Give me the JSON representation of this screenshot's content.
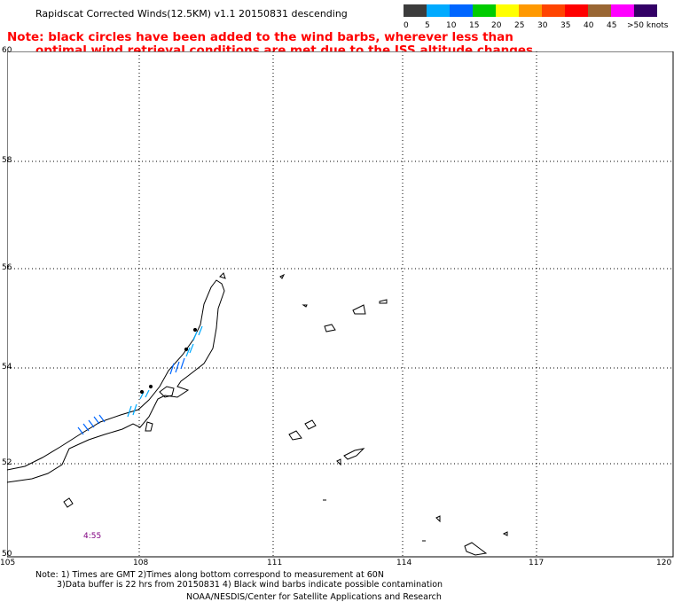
{
  "header": {
    "title": "Rapidscat Corrected Winds(12.5KM) v1.1 20150831 descending",
    "note_line1": "Note: black circles have been added to the wind barbs, wherever less than",
    "note_line2": "optimal wind retrieval conditions are met due to the ISS altitude changes."
  },
  "legend": {
    "labels": [
      "0",
      "5",
      "10",
      "15",
      "20",
      "25",
      "30",
      "35",
      "40",
      "45",
      ">50 knots"
    ],
    "colors": [
      "#3c3c3c",
      "#00aaff",
      "#0066ff",
      "#00cc00",
      "#ffff00",
      "#ff9900",
      "#ff4400",
      "#ff0000",
      "#996633",
      "#ff00ff",
      "#330066"
    ]
  },
  "map": {
    "lat_labels": [
      "60",
      "58",
      "56",
      "54",
      "52",
      "50"
    ],
    "lon_labels": [
      "105",
      "108",
      "111",
      "114",
      "117",
      "120"
    ],
    "time_label": "4:55"
  },
  "footer": {
    "line1": "Note: 1) Times are GMT 2)Times along bottom correspond to measurement at 60N",
    "line2": "3)Data buffer is 22 hrs from 20150831 4) Black wind barbs indicate possible contamination",
    "line3": "NOAA/NESDIS/Center for Satellite Applications and Research"
  }
}
